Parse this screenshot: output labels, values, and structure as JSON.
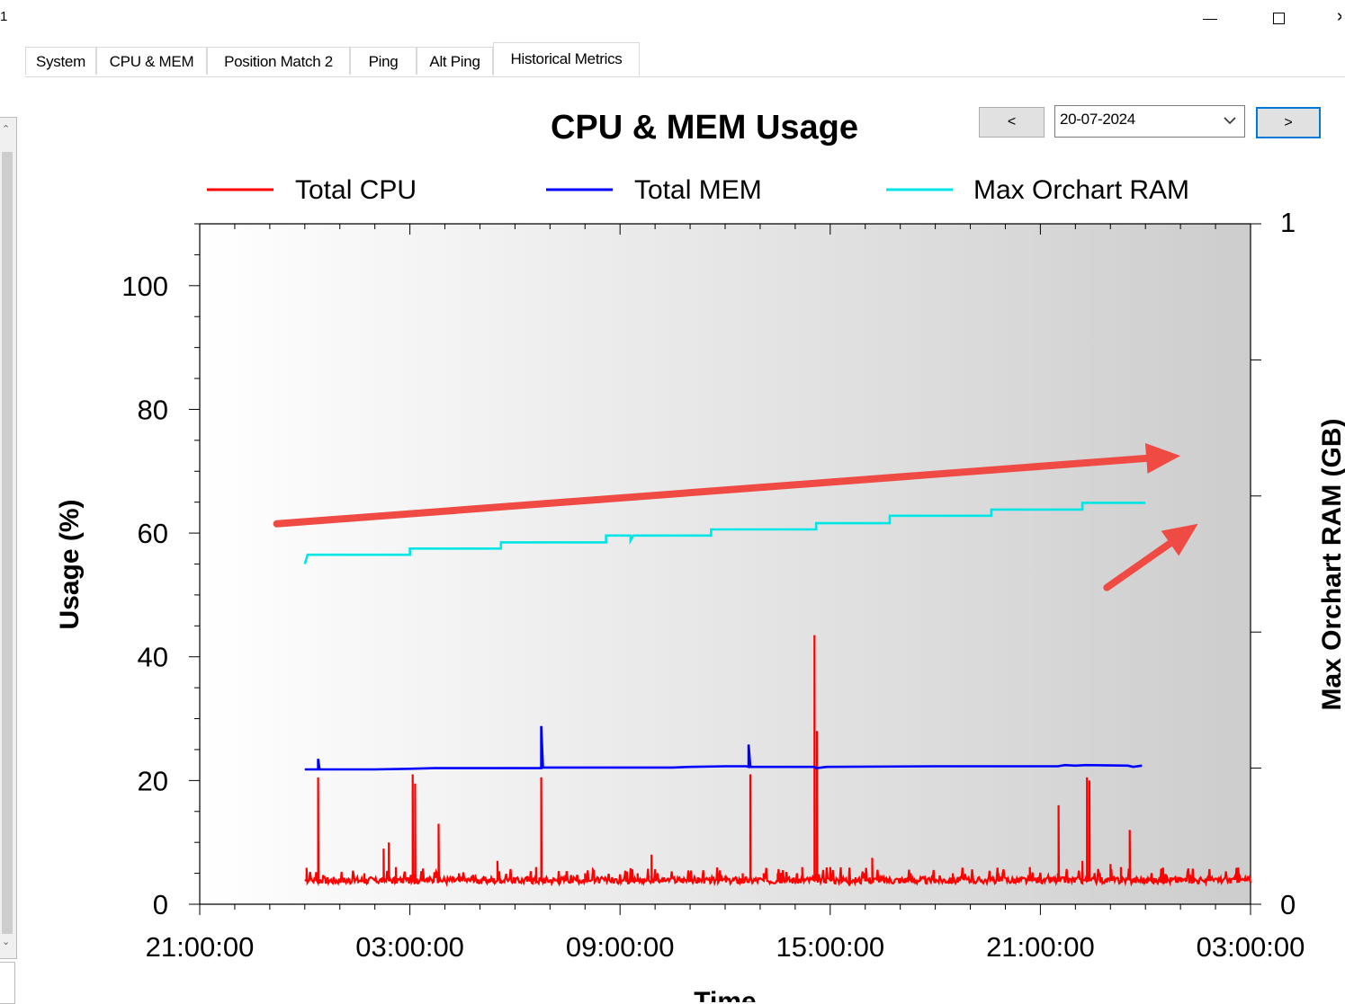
{
  "window": {
    "title_fragment": "1",
    "close_fragment": "X"
  },
  "tabs": [
    {
      "label": "System"
    },
    {
      "label": "CPU & MEM"
    },
    {
      "label": "Position Match 2"
    },
    {
      "label": "Ping"
    },
    {
      "label": "Alt Ping"
    },
    {
      "label": "Historical Metrics",
      "active": true
    }
  ],
  "date_nav": {
    "prev_label": "<",
    "next_label": ">",
    "selected_date": "20-07-2024"
  },
  "colors": {
    "cpu": "#ff0000",
    "mem": "#0000ff",
    "ram": "#00e5e5",
    "annotation_arrow": "#f04a44"
  },
  "chart_data": {
    "type": "line",
    "title": "CPU & MEM Usage",
    "xlabel": "Time",
    "ylabel": "Usage (%)",
    "y2label": "Max Orchart RAM (GB)",
    "x_tick_labels": [
      "21:00:00",
      "03:00:00",
      "09:00:00",
      "15:00:00",
      "21:00:00",
      "03:00:00"
    ],
    "x_range_hours": [
      0,
      30
    ],
    "ylim": [
      0,
      110
    ],
    "y_ticks": [
      0,
      20,
      40,
      60,
      80,
      100
    ],
    "y2lim": [
      0,
      1
    ],
    "y2_ticks": [
      0,
      1
    ],
    "legend_position": "top",
    "grid": false,
    "series": [
      {
        "name": "Total CPU",
        "axis": "left",
        "baseline": 3.8,
        "x_start": 3.0,
        "x_end": 30.0,
        "spikes": [
          [
            3.05,
            5
          ],
          [
            3.38,
            20.5
          ],
          [
            4.05,
            5
          ],
          [
            4.7,
            5
          ],
          [
            5.25,
            9
          ],
          [
            5.4,
            10
          ],
          [
            5.6,
            6
          ],
          [
            6.08,
            21
          ],
          [
            6.15,
            19.5
          ],
          [
            6.82,
            13
          ],
          [
            7.4,
            5
          ],
          [
            8.5,
            7
          ],
          [
            9.6,
            6
          ],
          [
            9.75,
            20.5
          ],
          [
            11.0,
            5
          ],
          [
            12.5,
            5
          ],
          [
            12.9,
            8
          ],
          [
            14.0,
            5
          ],
          [
            15.5,
            5
          ],
          [
            15.72,
            21
          ],
          [
            16.1,
            5
          ],
          [
            16.5,
            5
          ],
          [
            17.2,
            6
          ],
          [
            17.55,
            43.5
          ],
          [
            17.62,
            28
          ],
          [
            18.0,
            6
          ],
          [
            19.2,
            7.5
          ],
          [
            20.3,
            5
          ],
          [
            21.5,
            5
          ],
          [
            22.8,
            5
          ],
          [
            23.7,
            6
          ],
          [
            24.5,
            5
          ],
          [
            24.52,
            16
          ],
          [
            25.2,
            7
          ],
          [
            25.33,
            20.5
          ],
          [
            25.4,
            20
          ],
          [
            25.7,
            5
          ],
          [
            26.0,
            6.5
          ],
          [
            26.3,
            6
          ],
          [
            26.55,
            12
          ]
        ]
      },
      {
        "name": "Total MEM",
        "axis": "left",
        "points": [
          [
            3.0,
            21.8
          ],
          [
            3.38,
            21.8
          ],
          [
            3.38,
            23.5
          ],
          [
            3.42,
            21.8
          ],
          [
            5.0,
            21.8
          ],
          [
            6.0,
            21.9
          ],
          [
            6.7,
            22.0
          ],
          [
            7.8,
            22.0
          ],
          [
            9.75,
            22.0
          ],
          [
            9.75,
            28.8
          ],
          [
            9.8,
            22.1
          ],
          [
            13.5,
            22.1
          ],
          [
            14.0,
            22.2
          ],
          [
            15.0,
            22.3
          ],
          [
            15.6,
            22.3
          ],
          [
            15.67,
            22.2
          ],
          [
            15.67,
            25.8
          ],
          [
            15.72,
            22.2
          ],
          [
            17.55,
            22.2
          ],
          [
            17.6,
            22.0
          ],
          [
            17.9,
            22.2
          ],
          [
            21.0,
            22.3
          ],
          [
            24.5,
            22.3
          ],
          [
            24.7,
            22.5
          ],
          [
            25.0,
            22.4
          ],
          [
            25.3,
            22.5
          ],
          [
            26.5,
            22.4
          ],
          [
            26.65,
            22.2
          ],
          [
            26.9,
            22.4
          ]
        ]
      },
      {
        "name": "Max Orchart RAM",
        "axis": "left",
        "points": [
          [
            3.0,
            55.0
          ],
          [
            3.08,
            56.5
          ],
          [
            6.0,
            56.5
          ],
          [
            6.0,
            57.5
          ],
          [
            8.6,
            57.5
          ],
          [
            8.6,
            58.5
          ],
          [
            11.6,
            58.5
          ],
          [
            11.6,
            59.6
          ],
          [
            12.3,
            59.6
          ],
          [
            12.3,
            58.8
          ],
          [
            12.38,
            59.6
          ],
          [
            14.6,
            59.6
          ],
          [
            14.6,
            60.6
          ],
          [
            17.6,
            60.6
          ],
          [
            17.6,
            61.6
          ],
          [
            19.7,
            61.6
          ],
          [
            19.7,
            62.8
          ],
          [
            22.6,
            62.8
          ],
          [
            22.6,
            63.8
          ],
          [
            25.2,
            63.8
          ],
          [
            25.2,
            64.9
          ],
          [
            27.0,
            64.9
          ]
        ]
      }
    ],
    "annotations": [
      {
        "type": "arrow",
        "from": [
          2.2,
          61.5
        ],
        "to": [
          28.0,
          72.5
        ]
      },
      {
        "type": "arrow",
        "from": [
          25.9,
          51.2
        ],
        "to": [
          28.5,
          61.5
        ]
      }
    ]
  }
}
